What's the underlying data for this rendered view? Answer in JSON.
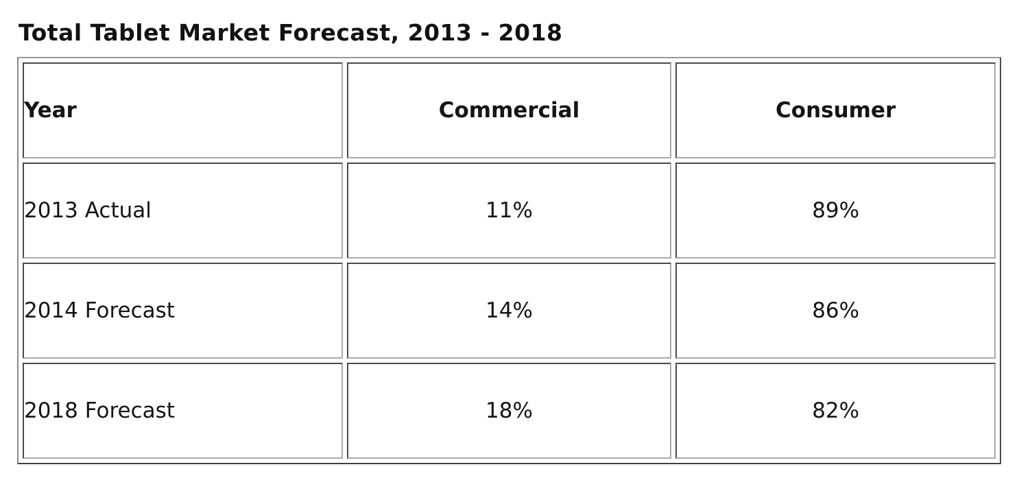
{
  "chart_data": {
    "type": "table",
    "title": "Total Tablet Market Forecast, 2013 - 2018",
    "columns": [
      "Year",
      "Commercial",
      "Consumer"
    ],
    "rows": [
      [
        "2013 Actual",
        "11%",
        "89%"
      ],
      [
        "2014 Forecast",
        "14%",
        "86%"
      ],
      [
        "2018 Forecast",
        "18%",
        "82%"
      ]
    ],
    "categories": [
      "2013 Actual",
      "2014 Forecast",
      "2018 Forecast"
    ],
    "series": [
      {
        "name": "Commercial",
        "values": [
          11,
          14,
          18
        ]
      },
      {
        "name": "Consumer",
        "values": [
          89,
          86,
          82
        ]
      }
    ],
    "value_unit": "%"
  },
  "colors": {
    "background": "#ffffff",
    "text": "#151515",
    "border_dark": "#4a4a4a",
    "border_light": "#a9a9a9"
  }
}
